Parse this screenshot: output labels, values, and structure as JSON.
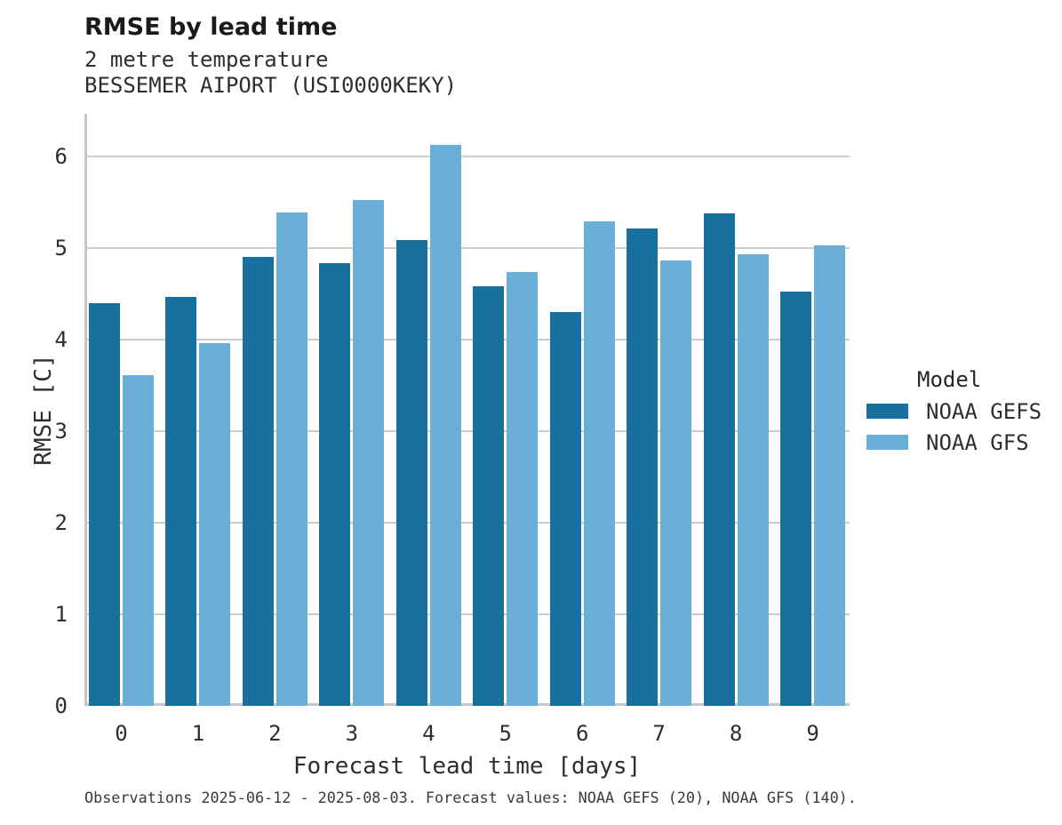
{
  "chart_data": {
    "type": "bar",
    "title": "RMSE by lead time",
    "subtitle_lines": [
      "2 metre temperature",
      "BESSEMER AIPORT (USI0000KEKY)"
    ],
    "xlabel": "Forecast lead time [days]",
    "ylabel": "RMSE [C]",
    "categories": [
      "0",
      "1",
      "2",
      "3",
      "4",
      "5",
      "6",
      "7",
      "8",
      "9"
    ],
    "series": [
      {
        "name": "NOAA GEFS",
        "color": "#17709E",
        "values": [
          4.4,
          4.47,
          4.91,
          4.84,
          5.09,
          4.59,
          4.3,
          5.22,
          5.38,
          4.53
        ]
      },
      {
        "name": "NOAA GFS",
        "color": "#69AFD8",
        "values": [
          3.61,
          3.96,
          5.39,
          5.53,
          6.13,
          4.74,
          5.29,
          4.87,
          4.94,
          5.03
        ]
      }
    ],
    "ylim": [
      0,
      6.47
    ],
    "yticks": [
      0,
      1,
      2,
      3,
      4,
      5,
      6
    ],
    "grid": true,
    "legend": {
      "title": "Model",
      "position": "right"
    }
  },
  "footer": {
    "note": "Observations 2025-06-12 - 2025-08-03. Forecast values: NOAA GEFS (20), NOAA GFS (140)."
  }
}
